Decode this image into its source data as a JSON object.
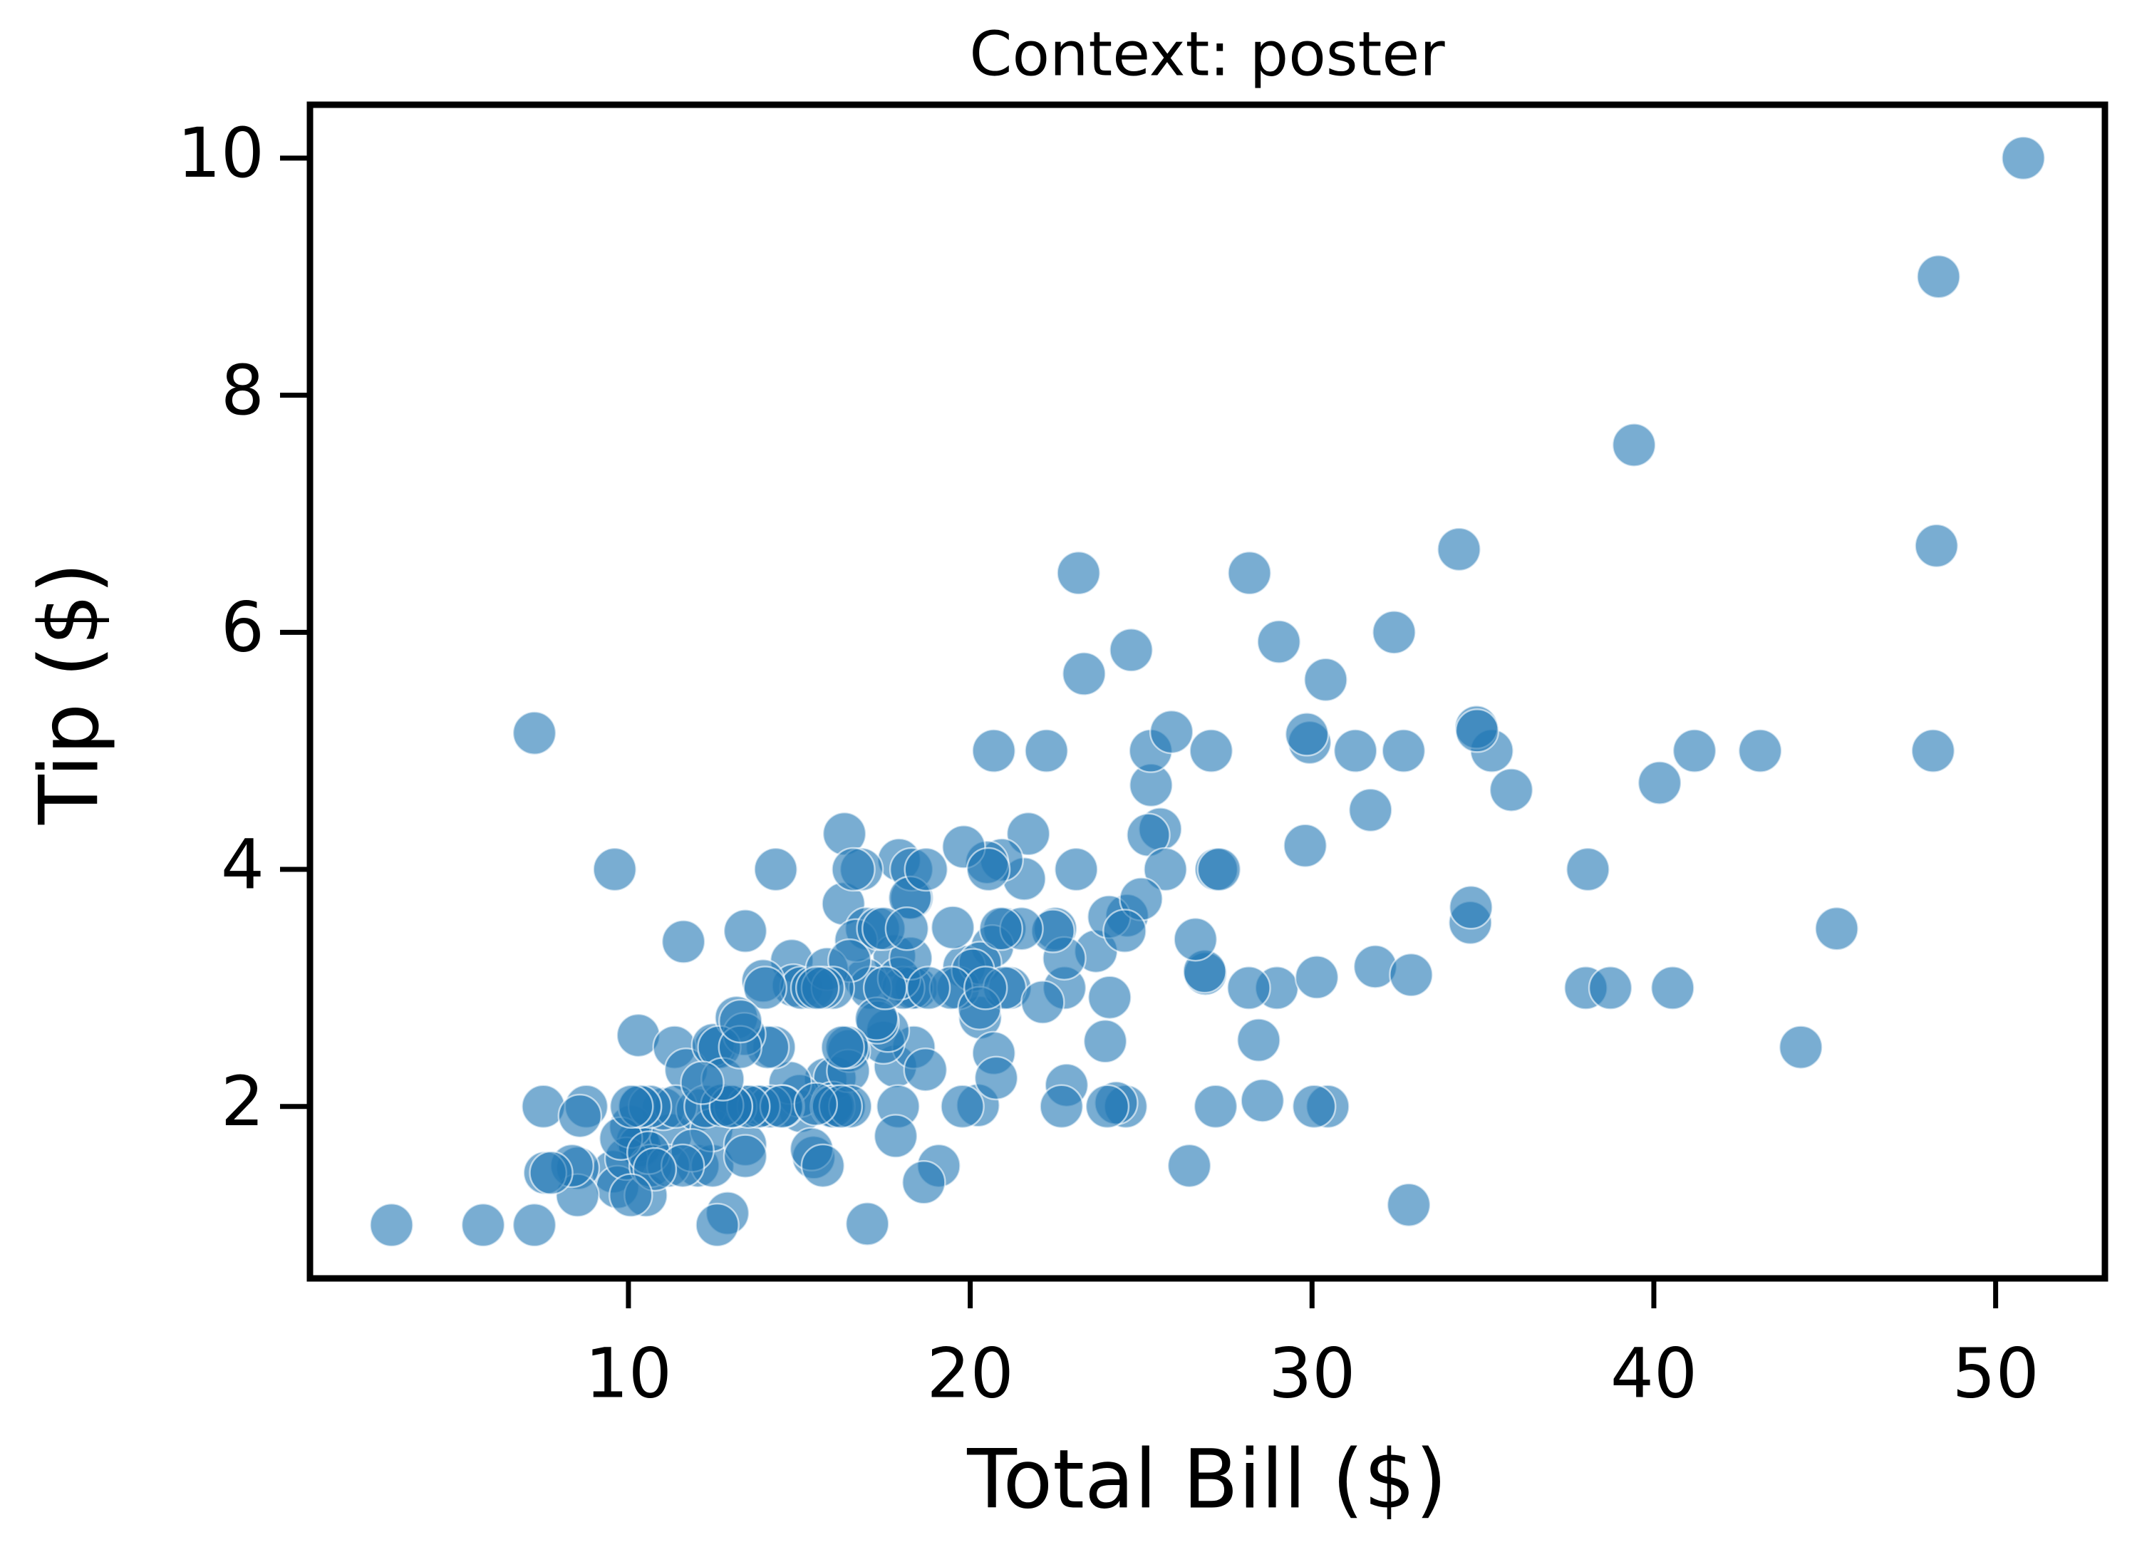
{
  "chart_data": {
    "type": "scatter",
    "title": "Context: poster",
    "xlabel": "Total Bill ($)",
    "ylabel": "Tip ($)",
    "color": "#1f77b4",
    "x": [
      16.99,
      10.34,
      21.01,
      23.68,
      24.59,
      25.29,
      8.77,
      26.88,
      15.04,
      14.78,
      10.27,
      35.26,
      15.42,
      18.43,
      14.83,
      21.58,
      10.33,
      16.29,
      16.97,
      20.65,
      17.92,
      20.29,
      15.77,
      39.42,
      19.82,
      17.81,
      13.37,
      12.69,
      21.7,
      19.65,
      9.55,
      18.35,
      15.06,
      20.69,
      17.78,
      24.06,
      16.31,
      16.93,
      18.69,
      31.27,
      16.04,
      17.46,
      13.94,
      9.68,
      30.4,
      18.29,
      22.23,
      32.4,
      28.55,
      18.04,
      12.54,
      10.29,
      34.81,
      9.94,
      25.56,
      19.49,
      38.01,
      26.41,
      11.24,
      48.27,
      20.29,
      13.81,
      11.02,
      18.29,
      17.59,
      20.08,
      16.45,
      3.07,
      20.23,
      15.01,
      12.02,
      17.07,
      26.86,
      25.28,
      14.73,
      10.51,
      17.92,
      27.2,
      22.76,
      17.29,
      19.44,
      16.66,
      10.07,
      32.68,
      15.98,
      34.83,
      13.03,
      18.28,
      24.71,
      21.16,
      28.97,
      22.49,
      5.75,
      16.32,
      22.75,
      40.17,
      27.28,
      12.03,
      21.01,
      12.46,
      11.35,
      15.38,
      44.3,
      22.42,
      20.92,
      15.36,
      20.49,
      25.21,
      18.24,
      14.31,
      14,
      7.25,
      38.07,
      23.95,
      25.71,
      17.31,
      29.93,
      10.65,
      12.43,
      24.08,
      11.69,
      13.42,
      14.26,
      15.95,
      12.48,
      29.8,
      8.52,
      14.52,
      11.38,
      22.82,
      19.08,
      20.27,
      11.17,
      12.26,
      18.26,
      8.51,
      10.33,
      14.15,
      16,
      13.16,
      17.47,
      34.3,
      41.19,
      27.05,
      16.43,
      8.35,
      18.64,
      11.87,
      9.78,
      7.51,
      14.07,
      13.13,
      17.26,
      24.55,
      19.77,
      29.85,
      48.17,
      25,
      13.39,
      16.49,
      21.5,
      12.66,
      16.21,
      13.81,
      17.51,
      24.52,
      20.76,
      31.71,
      10.59,
      10.63,
      50.81,
      15.81,
      7.25,
      31.85,
      16.82,
      32.9,
      17.89,
      14.48,
      9.6,
      34.63,
      34.65,
      23.33,
      45.35,
      23.17,
      40.55,
      20.69,
      20.9,
      30.46,
      18.15,
      23.1,
      15.69,
      19.81,
      28.44,
      15.48,
      16.58,
      7.56,
      10.34,
      43.11,
      13,
      13.51,
      18.71,
      12.74,
      13,
      16.4,
      20.53,
      16.47,
      26.59,
      38.73,
      24.27,
      12.76,
      30.06,
      25.89,
      48.33,
      13.27,
      28.17,
      12.9,
      28.15,
      11.59,
      7.74,
      30.14,
      12.16,
      13.42,
      8.58,
      15.98,
      13.42,
      16.27,
      10.09,
      20.45,
      13.28,
      22.12,
      24.01,
      15.69,
      11.61,
      10.77,
      15.53,
      10.07,
      12.6,
      32.83,
      35.83,
      29.03,
      27.18,
      22.67,
      17.82,
      18.78
    ],
    "values": [
      1.01,
      1.66,
      3.5,
      3.31,
      3.61,
      4.71,
      2,
      3.12,
      1.96,
      3.23,
      1.71,
      5,
      1.57,
      3,
      3.02,
      3.92,
      1.67,
      3.71,
      3.5,
      3.35,
      4.08,
      2.75,
      2.23,
      7.58,
      3.18,
      2.34,
      2,
      2,
      4.3,
      3,
      1.45,
      2.5,
      3,
      2.45,
      3.27,
      3.6,
      2,
      3.07,
      2.31,
      5,
      2.24,
      2.54,
      3.06,
      1.32,
      5.6,
      3,
      5,
      6,
      2.05,
      3,
      2.5,
      2.6,
      5.2,
      1.56,
      4.34,
      3.51,
      3,
      1.5,
      1.76,
      6.73,
      3.21,
      2,
      1.98,
      3.76,
      2.64,
      3.15,
      2.47,
      1,
      2.01,
      2.09,
      1.97,
      3,
      3.14,
      5,
      2.2,
      1.25,
      3.08,
      4,
      3,
      2.71,
      3,
      3.4,
      1.83,
      5,
      2.03,
      5.17,
      2,
      4,
      5.85,
      3,
      3,
      3.5,
      1,
      4.3,
      3.25,
      4.73,
      4,
      1.5,
      3,
      1.5,
      2.5,
      3,
      2.5,
      3.48,
      4.08,
      1.64,
      4.06,
      4.29,
      3.76,
      4,
      3,
      1,
      4,
      2.55,
      4,
      3.5,
      5.07,
      1.5,
      1.8,
      2.92,
      2.31,
      1.68,
      2.5,
      2,
      2.52,
      4.2,
      1.48,
      2,
      2,
      2.18,
      1.5,
      2.83,
      1.5,
      2,
      3.25,
      1.25,
      2,
      2,
      2,
      2.75,
      3.5,
      6.7,
      5,
      5,
      2.3,
      1.5,
      1.36,
      1.63,
      1.73,
      2,
      2.5,
      2,
      2.74,
      2,
      2,
      5.14,
      5,
      3.75,
      2.61,
      2,
      3.5,
      2.5,
      2,
      2,
      3,
      3.48,
      2.24,
      4.5,
      1.61,
      2,
      10,
      3.16,
      5.15,
      3.18,
      4,
      3.11,
      2,
      2,
      4,
      3.55,
      3.68,
      5.65,
      3.5,
      6.5,
      3,
      5,
      3.5,
      2,
      3.5,
      4,
      1.5,
      4.19,
      2.56,
      2.02,
      4,
      1.44,
      2,
      5,
      2,
      2,
      4,
      2.01,
      2,
      2.5,
      4,
      3.23,
      3.41,
      3,
      2.03,
      2.23,
      2,
      5.16,
      9,
      2.5,
      6.5,
      1.1,
      3,
      1.5,
      1.44,
      3.09,
      2.2,
      3.48,
      1.92,
      3,
      1.58,
      2.5,
      2,
      3,
      2.72,
      2.88,
      2,
      3,
      3.39,
      1.47,
      3,
      1.25,
      1,
      1.17,
      4.67,
      5.92,
      2,
      2,
      1.75,
      3
    ],
    "xlim": [
      0.683,
      53.197
    ],
    "xticks": [
      10,
      20,
      30,
      40,
      50
    ],
    "ylim": [
      0.55,
      10.45
    ],
    "yticks": [
      2,
      4,
      6,
      8,
      10
    ]
  }
}
